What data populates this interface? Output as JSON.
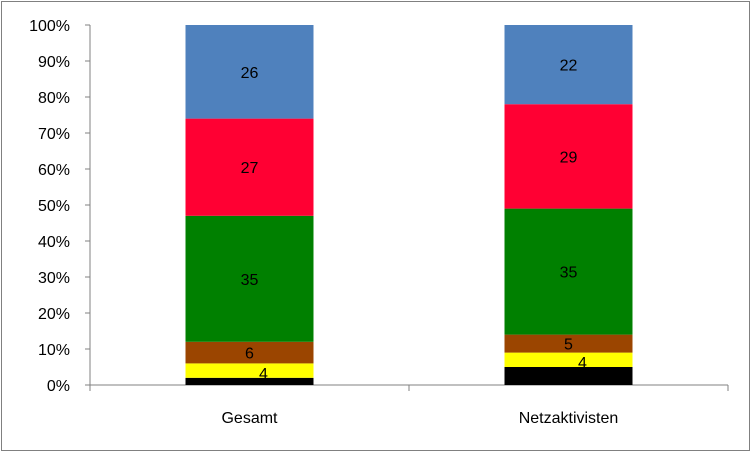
{
  "chart_data": {
    "type": "bar",
    "stacked": true,
    "normalized": true,
    "categories": [
      "Gesamt",
      "Netzaktivisten"
    ],
    "series": [
      {
        "color": "#000000",
        "values": [
          2,
          5
        ],
        "labels": [
          "",
          ""
        ]
      },
      {
        "color": "#ffff00",
        "values": [
          4,
          4
        ],
        "labels": [
          "4",
          "4"
        ]
      },
      {
        "color": "#9b4500",
        "values": [
          6,
          5
        ],
        "labels": [
          "6",
          "5"
        ]
      },
      {
        "color": "#008000",
        "values": [
          35,
          35
        ],
        "labels": [
          "35",
          "35"
        ]
      },
      {
        "color": "#ff0033",
        "values": [
          27,
          29
        ],
        "labels": [
          "27",
          "29"
        ]
      },
      {
        "color": "#4f81bd",
        "values": [
          26,
          22
        ],
        "labels": [
          "26",
          "22"
        ]
      }
    ],
    "ylim": [
      0,
      100
    ],
    "yticks": [
      "0%",
      "10%",
      "20%",
      "30%",
      "40%",
      "50%",
      "60%",
      "70%",
      "80%",
      "90%",
      "100%"
    ],
    "grid": false,
    "legend": "none",
    "title": "",
    "xlabel": "",
    "ylabel": ""
  }
}
